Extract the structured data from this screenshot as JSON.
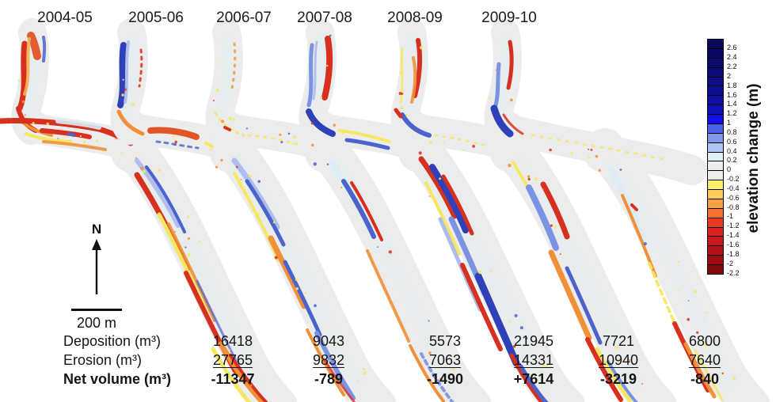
{
  "figure": {
    "panels": [
      {
        "year": "2004-05",
        "deposition": "16418",
        "erosion": "27765",
        "net": "-11347"
      },
      {
        "year": "2005-06",
        "deposition": "9043",
        "erosion": "9832",
        "net": "-789"
      },
      {
        "year": "2006-07",
        "deposition": "5573",
        "erosion": "7063",
        "net": "-1490"
      },
      {
        "year": "2007-08",
        "deposition": "21945",
        "erosion": "14331",
        "net": "+7614"
      },
      {
        "year": "2008-09",
        "deposition": "7721",
        "erosion": "10940",
        "net": "-3219"
      },
      {
        "year": "2009-10",
        "deposition": "6800",
        "erosion": "7640",
        "net": "-840"
      }
    ],
    "table": {
      "row_labels": [
        "Deposition (m³)",
        "Erosion (m³)",
        "Net volume (m³)"
      ]
    },
    "north_label": "N",
    "scale_label": "200 m",
    "legend": {
      "title": "elevation change (m)",
      "tick_labels": [
        "2.6",
        "2.4",
        "2.2",
        "2",
        "1.8",
        "1.6",
        "1.4",
        "1.2",
        "1",
        "0.8",
        "0.6",
        "0.4",
        "0.2",
        "0",
        "-0.2",
        "-0.4",
        "-0.6",
        "-0.8",
        "-1",
        "-1.2",
        "-1.4",
        "-1.6",
        "-1.8",
        "-2",
        "-2.2"
      ],
      "cell_colors": [
        "#08085c",
        "#0a0a64",
        "#0b0b6e",
        "#0c0c78",
        "#0d0d84",
        "#0e0e92",
        "#0f0fa4",
        "#1111bc",
        "#1212e6",
        "#4c62e8",
        "#8098ec",
        "#b2c4f0",
        "#dcf0f6",
        "#ebeeec",
        "#ececec",
        "#f8ef6e",
        "#fbcc5c",
        "#fa9f44",
        "#f4702f",
        "#e93a22",
        "#db2222",
        "#c8191b",
        "#b21215",
        "#9c0d0f",
        "#840809"
      ]
    },
    "colors": {
      "channel": "#ececec",
      "R": "#d8301f",
      "RO": "#e05525",
      "O": "#f0913a",
      "OL": "#f6b24e",
      "Y": "#f6e762",
      "BD": "#2e41b8",
      "BM": "#4d63cc",
      "BS": "#7c92e2",
      "PB": "#aebdee",
      "C": "#d9ecf4"
    }
  },
  "chart_data": {
    "type": "table",
    "title": "Annual elevation-change maps with deposition/erosion volumes",
    "categories": [
      "2004-05",
      "2005-06",
      "2006-07",
      "2007-08",
      "2008-09",
      "2009-10"
    ],
    "series": [
      {
        "name": "Deposition (m³)",
        "values": [
          16418,
          9043,
          5573,
          21945,
          7721,
          6800
        ]
      },
      {
        "name": "Erosion (m³)",
        "values": [
          27765,
          9832,
          7063,
          14331,
          10940,
          7640
        ]
      },
      {
        "name": "Net volume (m³)",
        "values": [
          -11347,
          -789,
          -1490,
          7614,
          -3219,
          -840
        ]
      }
    ],
    "legend_title": "elevation change (m)",
    "legend_range": [
      -2.2,
      2.6
    ],
    "legend_step": 0.2,
    "scale_bar": "200 m"
  }
}
